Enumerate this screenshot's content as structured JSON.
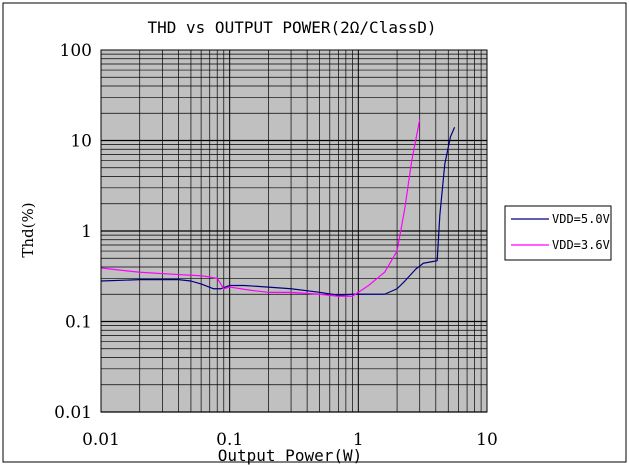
{
  "chart_data": {
    "type": "line",
    "title": "THD vs OUTPUT POWER(2Ω/ClassD)",
    "xlabel": "Output Power(W)",
    "ylabel": "Thd(%)",
    "x_scale": "log",
    "y_scale": "log",
    "xlim": [
      0.01,
      10
    ],
    "ylim": [
      0.01,
      100
    ],
    "x_ticks": [
      {
        "value": 0.01,
        "label": "0.01"
      },
      {
        "value": 0.1,
        "label": "0.1"
      },
      {
        "value": 1,
        "label": "1"
      },
      {
        "value": 10,
        "label": "10"
      }
    ],
    "y_ticks": [
      {
        "value": 0.01,
        "label": "0.01"
      },
      {
        "value": 0.1,
        "label": "0.1"
      },
      {
        "value": 1,
        "label": "1"
      },
      {
        "value": 10,
        "label": "10"
      },
      {
        "value": 100,
        "label": "100"
      }
    ],
    "grid": true,
    "plot_background": "#c0c0c0",
    "legend_position": "right",
    "series": [
      {
        "name": "VDD=5.0V",
        "color": "#000080",
        "x": [
          0.01,
          0.02,
          0.04,
          0.05,
          0.06,
          0.075,
          0.085,
          0.1,
          0.13,
          0.2,
          0.3,
          0.5,
          0.7,
          0.9,
          1.2,
          1.6,
          2.0,
          2.3,
          2.8,
          3.2,
          3.8,
          4.1,
          4.3,
          4.7,
          5.2,
          5.6
        ],
        "y": [
          0.28,
          0.29,
          0.29,
          0.28,
          0.26,
          0.23,
          0.23,
          0.25,
          0.25,
          0.24,
          0.23,
          0.21,
          0.195,
          0.2,
          0.2,
          0.2,
          0.23,
          0.28,
          0.38,
          0.44,
          0.46,
          0.47,
          1.5,
          5.5,
          11,
          14
        ]
      },
      {
        "name": "VDD=3.6V",
        "color": "#ff00ff",
        "x": [
          0.01,
          0.02,
          0.04,
          0.06,
          0.07,
          0.08,
          0.09,
          0.1,
          0.15,
          0.2,
          0.3,
          0.5,
          0.7,
          0.9,
          1.2,
          1.6,
          2.0,
          2.3,
          2.6,
          3.0
        ],
        "y": [
          0.39,
          0.35,
          0.33,
          0.32,
          0.31,
          0.3,
          0.23,
          0.24,
          0.22,
          0.21,
          0.21,
          0.2,
          0.19,
          0.19,
          0.25,
          0.35,
          0.6,
          1.8,
          6,
          17
        ]
      }
    ]
  }
}
